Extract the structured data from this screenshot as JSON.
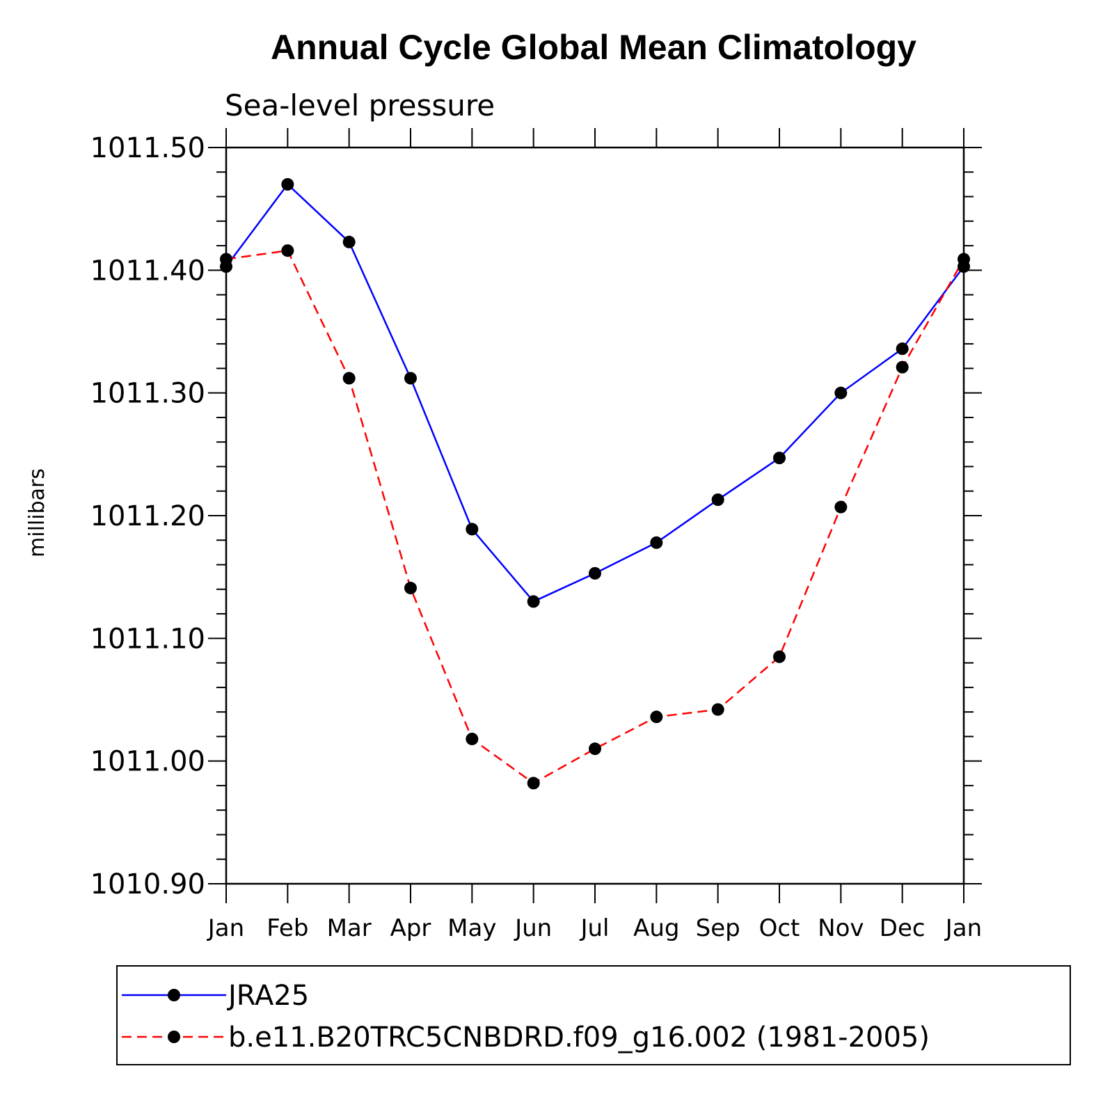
{
  "chart_data": {
    "type": "line",
    "title": "Annual Cycle Global Mean Climatology",
    "subtitle": "Sea-level pressure",
    "ylabel": "millibars",
    "xlabel": "",
    "categories": [
      "Jan",
      "Feb",
      "Mar",
      "Apr",
      "May",
      "Jun",
      "Jul",
      "Aug",
      "Sep",
      "Oct",
      "Nov",
      "Dec",
      "Jan"
    ],
    "ylim": [
      1010.9,
      1011.5
    ],
    "yticks": [
      "1010.90",
      "1011.00",
      "1011.10",
      "1011.20",
      "1011.30",
      "1011.40",
      "1011.50"
    ],
    "grid": false,
    "legend_position": "bottom",
    "series": [
      {
        "name": "JRA25",
        "color": "#0000ff",
        "style": "solid",
        "values": [
          1011.403,
          1011.47,
          1011.423,
          1011.312,
          1011.189,
          1011.13,
          1011.153,
          1011.178,
          1011.213,
          1011.247,
          1011.3,
          1011.336,
          1011.403
        ]
      },
      {
        "name": "b.e11.B20TRC5CNBDRD.f09_g16.002 (1981-2005)",
        "color": "#ff0000",
        "style": "dashed",
        "values": [
          1011.409,
          1011.416,
          1011.312,
          1011.141,
          1011.018,
          1010.982,
          1011.01,
          1011.036,
          1011.042,
          1011.085,
          1011.207,
          1011.321,
          1011.409
        ]
      }
    ]
  }
}
